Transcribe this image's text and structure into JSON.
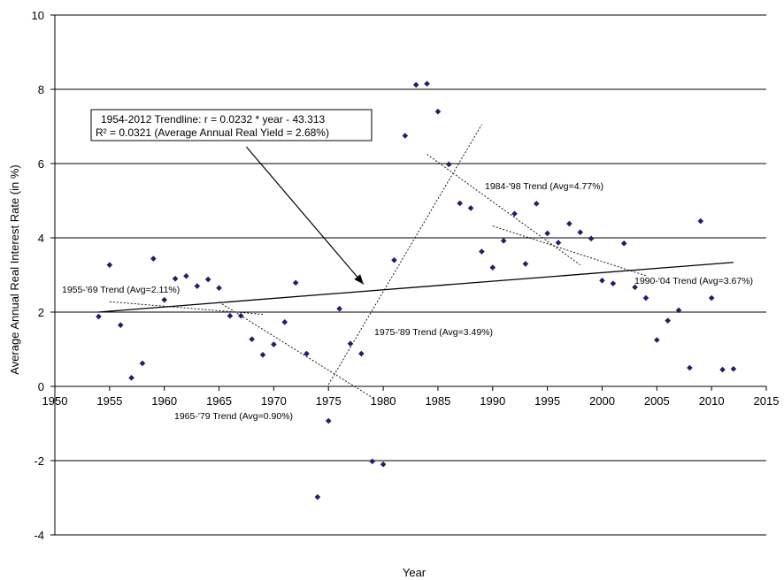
{
  "chart_data": {
    "type": "scatter",
    "xlabel": "Year",
    "ylabel": "Average Annual Real Interest Rate (in %)",
    "xlim": [
      1950,
      2015
    ],
    "ylim": [
      -4,
      10
    ],
    "grid": "horizontal",
    "marker_color": "#1f1f6b",
    "x_ticks": [
      "1950",
      "1955",
      "1960",
      "1965",
      "1970",
      "1975",
      "1980",
      "1985",
      "1990",
      "1995",
      "2000",
      "2005",
      "2010",
      "2015"
    ],
    "y_ticks": [
      "-4",
      "-2",
      "0",
      "2",
      "4",
      "6",
      "8",
      "10"
    ],
    "points": [
      [
        1954,
        1.88
      ],
      [
        1955,
        3.27
      ],
      [
        1956,
        1.65
      ],
      [
        1957,
        0.23
      ],
      [
        1958,
        0.62
      ],
      [
        1959,
        3.44
      ],
      [
        1960,
        2.33
      ],
      [
        1961,
        2.9
      ],
      [
        1962,
        2.97
      ],
      [
        1963,
        2.7
      ],
      [
        1964,
        2.88
      ],
      [
        1965,
        2.65
      ],
      [
        1966,
        1.9
      ],
      [
        1967,
        1.9
      ],
      [
        1968,
        1.27
      ],
      [
        1969,
        0.85
      ],
      [
        1970,
        1.13
      ],
      [
        1971,
        1.73
      ],
      [
        1972,
        2.79
      ],
      [
        1973,
        0.88
      ],
      [
        1974,
        -2.98
      ],
      [
        1975,
        -0.93
      ],
      [
        1976,
        2.09
      ],
      [
        1977,
        1.15
      ],
      [
        1978,
        0.88
      ],
      [
        1979,
        -2.02
      ],
      [
        1980,
        -2.1
      ],
      [
        1981,
        3.4
      ],
      [
        1982,
        6.75
      ],
      [
        1983,
        8.12
      ],
      [
        1984,
        8.15
      ],
      [
        1985,
        7.4
      ],
      [
        1986,
        5.98
      ],
      [
        1987,
        4.93
      ],
      [
        1988,
        4.8
      ],
      [
        1989,
        3.63
      ],
      [
        1990,
        3.2
      ],
      [
        1991,
        3.92
      ],
      [
        1992,
        4.65
      ],
      [
        1993,
        3.3
      ],
      [
        1994,
        4.92
      ],
      [
        1995,
        4.12
      ],
      [
        1996,
        3.87
      ],
      [
        1997,
        4.38
      ],
      [
        1998,
        4.15
      ],
      [
        1999,
        3.98
      ],
      [
        2000,
        2.85
      ],
      [
        2001,
        2.77
      ],
      [
        2002,
        3.85
      ],
      [
        2003,
        2.67
      ],
      [
        2004,
        2.38
      ],
      [
        2005,
        1.25
      ],
      [
        2006,
        1.77
      ],
      [
        2007,
        2.05
      ],
      [
        2008,
        0.5
      ],
      [
        2009,
        4.45
      ],
      [
        2010,
        2.38
      ],
      [
        2011,
        0.45
      ],
      [
        2012,
        0.47
      ]
    ],
    "trendlines": [
      {
        "from": [
          1954,
          2.0
        ],
        "to": [
          2012,
          3.34
        ],
        "style": "solid"
      },
      {
        "from": [
          1955,
          2.28
        ],
        "to": [
          1969,
          1.94
        ],
        "style": "dotted"
      },
      {
        "from": [
          1965,
          2.27
        ],
        "to": [
          1979,
          -0.3
        ],
        "style": "dotted"
      },
      {
        "from": [
          1975,
          0.05
        ],
        "to": [
          1989,
          7.05
        ],
        "style": "dotted"
      },
      {
        "from": [
          1984,
          6.25
        ],
        "to": [
          1998,
          3.27
        ],
        "style": "dotted"
      },
      {
        "from": [
          1990,
          4.32
        ],
        "to": [
          2004,
          2.98
        ],
        "style": "dotted"
      }
    ],
    "arrow": {
      "from": [
        1967.5,
        6.45
      ],
      "to": [
        1978.2,
        2.75
      ]
    },
    "annotations": {
      "main_box_line1": "1954-2012 Trendline: r = 0.0232 * year - 43.313",
      "main_box_line2": "R² = 0.0321 (Average Annual Real Yield = 2.68%)",
      "trend_1955_69": "1955-'69 Trend (Avg=2.11%)",
      "trend_1965_79": "1965-'79 Trend (Avg=0.90%)",
      "trend_1975_89": "1975-'89 Trend (Avg=3.49%)",
      "trend_1984_98": "1984-'98 Trend (Avg=4.77%)",
      "trend_1990_04": "1990-'04 Trend (Avg=3.67%)"
    }
  }
}
